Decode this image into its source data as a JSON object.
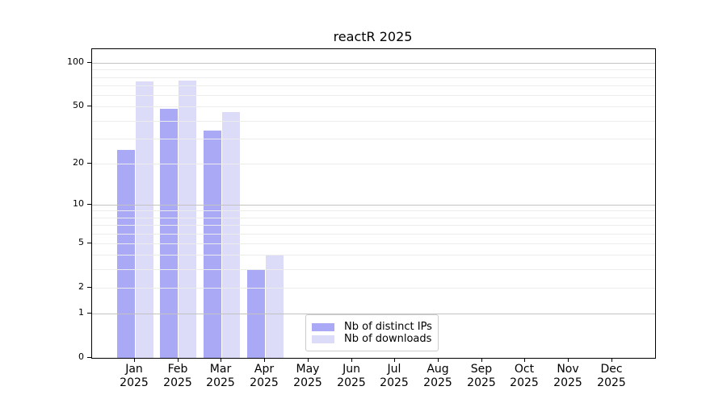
{
  "chart_data": {
    "type": "bar",
    "title": "reactR 2025",
    "categories": [
      "Jan",
      "Feb",
      "Mar",
      "Apr",
      "May",
      "Jun",
      "Jul",
      "Aug",
      "Sep",
      "Oct",
      "Nov",
      "Dec"
    ],
    "x_year_line": "2025",
    "series": [
      {
        "name": "Nb of distinct IPs",
        "color": "#a9a9f6",
        "values": [
          25,
          48,
          34,
          3,
          0,
          0,
          0,
          0,
          0,
          0,
          0,
          0
        ]
      },
      {
        "name": "Nb of downloads",
        "color": "#dcdcf9",
        "values": [
          75,
          76,
          46,
          4,
          0,
          0,
          0,
          0,
          0,
          0,
          0,
          0
        ]
      }
    ],
    "yaxis": {
      "scale": "log1p",
      "tick_labels": [
        100,
        50,
        20,
        10,
        5,
        2,
        1,
        0
      ],
      "major_gridlines": [
        1,
        10,
        100
      ],
      "minor_gridlines": [
        2,
        3,
        4,
        5,
        6,
        7,
        8,
        9,
        20,
        30,
        40,
        50,
        60,
        70,
        80,
        90
      ],
      "ylim": [
        0,
        125
      ],
      "grid": true
    },
    "legend": {
      "position": "lower center",
      "entries": [
        "Nb of distinct IPs",
        "Nb of downloads"
      ]
    },
    "colors": {
      "major_grid": "#c3c3c3",
      "minor_grid": "#ececec",
      "spine": "#000000",
      "text": "#000000",
      "background": "#ffffff"
    }
  }
}
